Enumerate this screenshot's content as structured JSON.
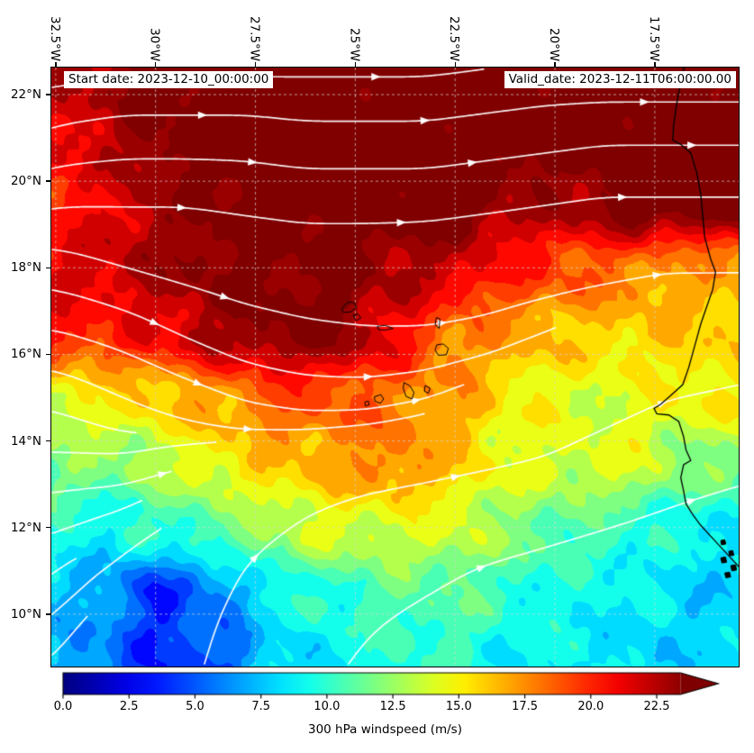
{
  "figure": {
    "title_left": "Start date: 2023-12-10_00:00:00",
    "title_right": "Valid_date: 2023-12-11T06:00:00.00"
  },
  "axes": {
    "x_ticks": [
      {
        "label": "32.5°W",
        "lon": -32.5
      },
      {
        "label": "30°W",
        "lon": -30
      },
      {
        "label": "27.5°W",
        "lon": -27.5
      },
      {
        "label": "25°W",
        "lon": -25
      },
      {
        "label": "22.5°W",
        "lon": -22.5
      },
      {
        "label": "20°W",
        "lon": -20
      },
      {
        "label": "17.5°W",
        "lon": -17.5
      }
    ],
    "y_ticks": [
      {
        "label": "22°N",
        "lat": 22
      },
      {
        "label": "20°N",
        "lat": 20
      },
      {
        "label": "18°N",
        "lat": 18
      },
      {
        "label": "16°N",
        "lat": 16
      },
      {
        "label": "14°N",
        "lat": 14
      },
      {
        "label": "12°N",
        "lat": 12
      },
      {
        "label": "10°N",
        "lat": 10
      }
    ]
  },
  "colorbar": {
    "label": "300 hPa windspeed (m/s)",
    "tick_labels": [
      "0.0",
      "2.5",
      "5.0",
      "7.5",
      "10.0",
      "12.5",
      "15.0",
      "17.5",
      "20.0",
      "22.5"
    ],
    "tick_values": [
      0,
      2.5,
      5,
      7.5,
      10,
      12.5,
      15,
      17.5,
      20,
      22.5
    ],
    "vmin": 0,
    "vmax": 23.75,
    "extend": "max",
    "colormap": "jet"
  },
  "chart_data": {
    "type": "heatmap",
    "title": "300 hPa windspeed with streamlines, valid 2023-12-11T06:00",
    "units": "m/s",
    "level": "300 hPa",
    "extent": {
      "lon_min": -32.61,
      "lon_max": -15.4,
      "lat_min": 8.79,
      "lat_max": 22.625
    },
    "grid_on": true,
    "field": {
      "lons": [
        -33,
        -31.5,
        -30,
        -28.5,
        -27,
        -25.5,
        -24,
        -22.5,
        -21,
        -19.5,
        -18,
        -16.5
      ],
      "lats": [
        22.5,
        21,
        19.5,
        18,
        16.5,
        15,
        13.5,
        12,
        10.5,
        9
      ],
      "windspeed_ms": [
        [
          22,
          23,
          25,
          25,
          25,
          25,
          25,
          25,
          25,
          25,
          25,
          25
        ],
        [
          21,
          22,
          24,
          25,
          25,
          25,
          25,
          25,
          25,
          25,
          25,
          25
        ],
        [
          20,
          21,
          23,
          24,
          25,
          25,
          25,
          25,
          23,
          23,
          25,
          25
        ],
        [
          21,
          22,
          23,
          24,
          24,
          24,
          23,
          22,
          20,
          19,
          18,
          17
        ],
        [
          21,
          20,
          21,
          23,
          24,
          24,
          21,
          18,
          17,
          16,
          16,
          16
        ],
        [
          14,
          15,
          16,
          17,
          19,
          19,
          18,
          17,
          15,
          14,
          14,
          15
        ],
        [
          12,
          12,
          13,
          15,
          16,
          17,
          18,
          16,
          14,
          14,
          14,
          12
        ],
        [
          10,
          9,
          10,
          11,
          13,
          14,
          14,
          14,
          12,
          11,
          10,
          9
        ],
        [
          8,
          7,
          4,
          6,
          9,
          10,
          11,
          11,
          10,
          9,
          9,
          8
        ],
        [
          8,
          6,
          4,
          5,
          8,
          9,
          10,
          10,
          9,
          9,
          8,
          8
        ]
      ],
      "v_component": [
        [
          0.5,
          0.5,
          0,
          0,
          0,
          0,
          0,
          0.5,
          0.5,
          0,
          0,
          0
        ],
        [
          1,
          0.5,
          0,
          0,
          -0.5,
          0,
          0,
          0.5,
          0.5,
          0.5,
          0,
          0
        ],
        [
          0.5,
          0,
          0,
          -0.5,
          -0.5,
          0,
          0,
          0.5,
          0.5,
          0.5,
          0,
          0
        ],
        [
          -0.5,
          -1,
          -1,
          -1,
          -0.5,
          0,
          0.5,
          0.5,
          0.5,
          0.5,
          0.5,
          0
        ],
        [
          -0.5,
          -1,
          -1.5,
          -1.5,
          -1,
          -0.5,
          0,
          0.5,
          1,
          1,
          0.5,
          0.5
        ],
        [
          -0.5,
          -1,
          -1,
          -1,
          -0.5,
          0,
          0.5,
          1,
          1,
          1,
          1,
          0.5
        ],
        [
          0,
          0,
          0.5,
          0.5,
          0.5,
          0.5,
          0.5,
          0.5,
          0.5,
          1,
          1,
          0.5
        ],
        [
          0.5,
          0.5,
          1,
          1.5,
          1.5,
          1,
          0.5,
          0.5,
          0.5,
          0.5,
          0.5,
          0.5
        ],
        [
          1,
          1,
          1.5,
          2,
          2,
          1.5,
          1,
          1,
          0.5,
          0.5,
          0.5,
          0
        ],
        [
          1,
          1.5,
          2,
          2.5,
          2.5,
          2,
          1.5,
          1,
          1,
          0.5,
          0.5,
          0
        ]
      ]
    },
    "streamlines": {
      "style": "white streamlines with arrowheads",
      "direction": "predominantly westerly (west to east) flow",
      "color": "#ffffff"
    },
    "map": {
      "coastline_color": "#000000",
      "gridline_color": "#d2d2d2",
      "coastline": [
        [
          -16.75,
          22.7
        ],
        [
          -16.85,
          22.3
        ],
        [
          -16.95,
          21.8
        ],
        [
          -17.03,
          21.3
        ],
        [
          -17.05,
          20.95
        ],
        [
          -16.85,
          20.85
        ],
        [
          -16.6,
          20.65
        ],
        [
          -16.45,
          20.2
        ],
        [
          -16.35,
          19.7
        ],
        [
          -16.3,
          19.2
        ],
        [
          -16.25,
          18.7
        ],
        [
          -16.1,
          18.2
        ],
        [
          -15.98,
          17.9
        ],
        [
          -16.05,
          17.5
        ],
        [
          -16.2,
          17.1
        ],
        [
          -16.35,
          16.7
        ],
        [
          -16.5,
          16.2
        ],
        [
          -16.65,
          15.7
        ],
        [
          -16.8,
          15.3
        ],
        [
          -17.1,
          15.05
        ],
        [
          -17.35,
          14.85
        ],
        [
          -17.52,
          14.75
        ],
        [
          -17.45,
          14.63
        ],
        [
          -17.15,
          14.6
        ],
        [
          -16.9,
          14.45
        ],
        [
          -16.78,
          14.1
        ],
        [
          -16.72,
          13.8
        ],
        [
          -16.6,
          13.55
        ],
        [
          -16.78,
          13.45
        ],
        [
          -16.85,
          13.15
        ],
        [
          -16.78,
          12.85
        ],
        [
          -16.72,
          12.55
        ],
        [
          -16.55,
          12.3
        ],
        [
          -16.35,
          12.05
        ],
        [
          -16.1,
          11.8
        ],
        [
          -15.85,
          11.55
        ],
        [
          -15.6,
          11.3
        ],
        [
          -15.35,
          11.05
        ],
        [
          -15.15,
          10.8
        ],
        [
          -14.9,
          10.5
        ],
        [
          -14.7,
          10.15
        ],
        [
          -14.5,
          9.8
        ],
        [
          -14.3,
          9.4
        ],
        [
          -14.05,
          9.0
        ],
        [
          -13.9,
          8.7
        ]
      ],
      "islands": [
        {
          "name": "santo-antao",
          "fill": false,
          "pts": [
            [
              -25.34,
              17.05
            ],
            [
              -25.2,
              17.2
            ],
            [
              -25.03,
              17.2
            ],
            [
              -24.98,
              17.08
            ],
            [
              -25.12,
              16.98
            ],
            [
              -25.3,
              16.97
            ]
          ]
        },
        {
          "name": "sao-vicente",
          "fill": false,
          "pts": [
            [
              -25.05,
              16.9
            ],
            [
              -24.93,
              16.93
            ],
            [
              -24.86,
              16.84
            ],
            [
              -24.98,
              16.78
            ]
          ]
        },
        {
          "name": "sao-nicolau",
          "fill": false,
          "pts": [
            [
              -24.45,
              16.65
            ],
            [
              -24.25,
              16.67
            ],
            [
              -24.05,
              16.6
            ],
            [
              -24.25,
              16.56
            ],
            [
              -24.42,
              16.57
            ]
          ]
        },
        {
          "name": "sal",
          "fill": false,
          "pts": [
            [
              -22.97,
              16.85
            ],
            [
              -22.88,
              16.82
            ],
            [
              -22.9,
              16.6
            ],
            [
              -23.0,
              16.68
            ]
          ]
        },
        {
          "name": "boa-vista",
          "fill": false,
          "pts": [
            [
              -22.96,
              16.22
            ],
            [
              -22.8,
              16.24
            ],
            [
              -22.67,
              16.14
            ],
            [
              -22.72,
              15.99
            ],
            [
              -22.92,
              15.98
            ],
            [
              -23.0,
              16.1
            ]
          ]
        },
        {
          "name": "maio",
          "fill": false,
          "pts": [
            [
              -23.25,
              15.28
            ],
            [
              -23.13,
              15.22
            ],
            [
              -23.17,
              15.1
            ],
            [
              -23.27,
              15.15
            ]
          ]
        },
        {
          "name": "santiago",
          "fill": false,
          "pts": [
            [
              -23.78,
              15.35
            ],
            [
              -23.63,
              15.27
            ],
            [
              -23.53,
              15.12
            ],
            [
              -23.58,
              14.97
            ],
            [
              -23.73,
              15.03
            ],
            [
              -23.8,
              15.22
            ]
          ]
        },
        {
          "name": "fogo",
          "fill": false,
          "pts": [
            [
              -24.52,
              15.02
            ],
            [
              -24.36,
              15.07
            ],
            [
              -24.29,
              14.97
            ],
            [
              -24.37,
              14.87
            ],
            [
              -24.51,
              14.92
            ]
          ]
        },
        {
          "name": "brava",
          "fill": false,
          "pts": [
            [
              -24.76,
              14.9
            ],
            [
              -24.67,
              14.92
            ],
            [
              -24.65,
              14.83
            ],
            [
              -24.75,
              14.81
            ]
          ]
        },
        {
          "name": "bijagos-1",
          "fill": true,
          "pts": [
            [
              -15.85,
              11.7
            ],
            [
              -15.75,
              11.72
            ],
            [
              -15.72,
              11.62
            ],
            [
              -15.83,
              11.6
            ]
          ]
        },
        {
          "name": "bijagos-2",
          "fill": true,
          "pts": [
            [
              -15.65,
              11.45
            ],
            [
              -15.55,
              11.47
            ],
            [
              -15.52,
              11.36
            ],
            [
              -15.63,
              11.35
            ]
          ]
        },
        {
          "name": "bijagos-3",
          "fill": true,
          "pts": [
            [
              -15.85,
              11.3
            ],
            [
              -15.73,
              11.32
            ],
            [
              -15.7,
              11.2
            ],
            [
              -15.82,
              11.18
            ]
          ]
        },
        {
          "name": "bijagos-4",
          "fill": true,
          "pts": [
            [
              -15.6,
              11.12
            ],
            [
              -15.48,
              11.14
            ],
            [
              -15.45,
              11.02
            ],
            [
              -15.57,
              11.0
            ]
          ]
        },
        {
          "name": "bijagos-5",
          "fill": true,
          "pts": [
            [
              -15.75,
              10.95
            ],
            [
              -15.63,
              10.97
            ],
            [
              -15.6,
              10.86
            ],
            [
              -15.72,
              10.84
            ]
          ]
        }
      ]
    }
  }
}
